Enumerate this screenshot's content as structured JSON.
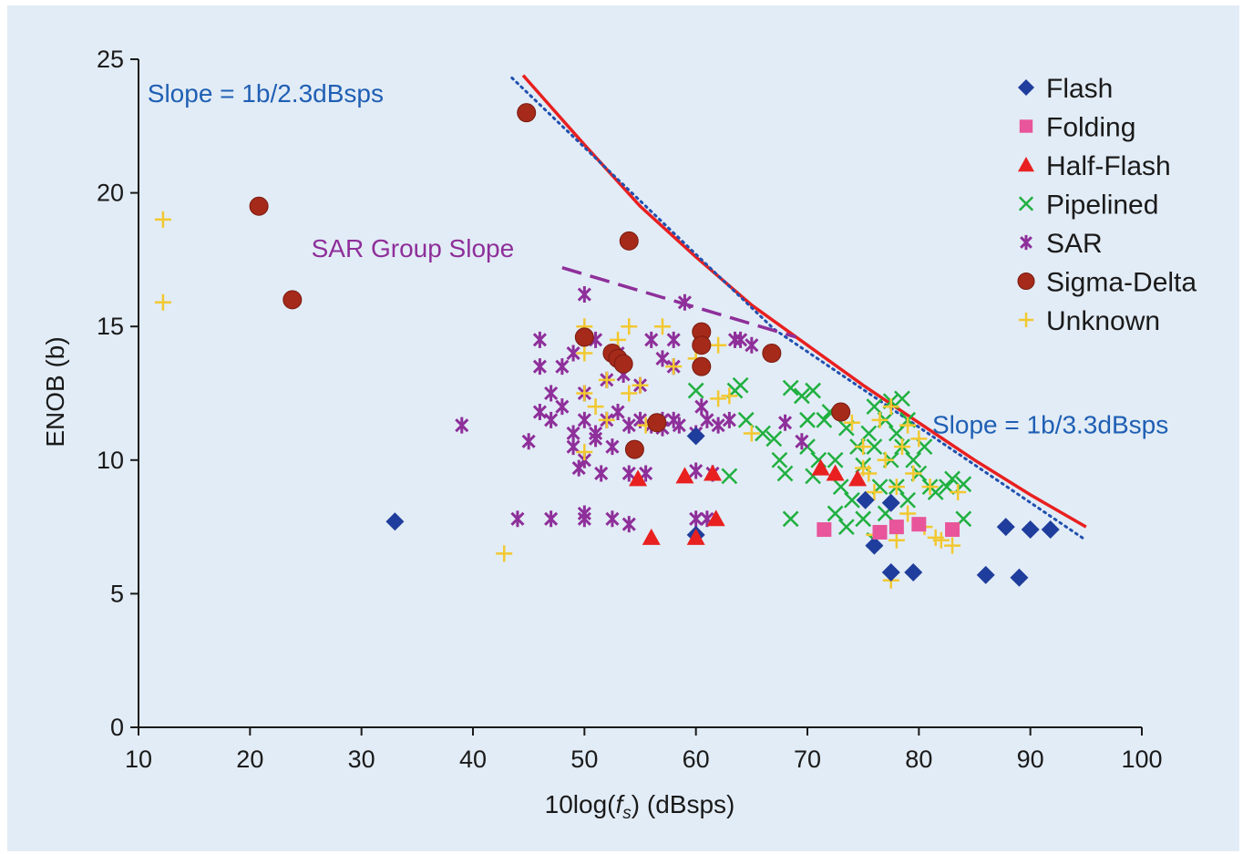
{
  "chart_data": {
    "type": "scatter",
    "xlabel_pre": "10log(",
    "xlabel_var": "f",
    "xlabel_sub": "s",
    "xlabel_post": ") (dBsps)",
    "ylabel": "ENOB (b)",
    "xlim": [
      10,
      100
    ],
    "ylim": [
      0,
      25
    ],
    "xticks": [
      10,
      20,
      30,
      40,
      50,
      60,
      70,
      80,
      90,
      100
    ],
    "yticks": [
      0,
      5,
      10,
      15,
      20,
      25
    ],
    "grid": false,
    "legend_position": "top-right",
    "legend": [
      {
        "label": "Flash",
        "marker": "diamond",
        "color": "#1f3d9c"
      },
      {
        "label": "Folding",
        "marker": "square",
        "color": "#e8559a"
      },
      {
        "label": "Half-Flash",
        "marker": "triangle",
        "color": "#e82020"
      },
      {
        "label": "Pipelined",
        "marker": "x",
        "color": "#20b040"
      },
      {
        "label": "SAR",
        "marker": "asterisk",
        "color": "#8e2f9a"
      },
      {
        "label": "Sigma-Delta",
        "marker": "circle",
        "color": "#a52a1a"
      },
      {
        "label": "Unknown",
        "marker": "plus",
        "color": "#f2c830"
      }
    ],
    "annotations": [
      {
        "text": "Slope = 1b/2.3dBsps",
        "x": 10.8,
        "y": 23.4,
        "color": "#1f5fb4"
      },
      {
        "text": "SAR Group Slope",
        "x": 25.5,
        "y": 17.6,
        "color": "#8e2f9a"
      },
      {
        "text": "Slope = 1b/3.3dBsps",
        "x": 81.2,
        "y": 11.0,
        "color": "#1f5fb4"
      }
    ],
    "lines": [
      {
        "style": "solid",
        "color": "#e82020",
        "points": [
          [
            44.5,
            24.4
          ],
          [
            50,
            21.8
          ],
          [
            55,
            19.5
          ],
          [
            60,
            17.6
          ],
          [
            65,
            15.8
          ],
          [
            70,
            14.3
          ],
          [
            75,
            12.8
          ],
          [
            80,
            11.4
          ],
          [
            85,
            10.0
          ],
          [
            90,
            8.7
          ],
          [
            95,
            7.5
          ]
        ]
      },
      {
        "style": "dotted",
        "color": "#2050b0",
        "points": [
          [
            43.5,
            24.3
          ],
          [
            67,
            14.9
          ],
          [
            95,
            7.0
          ]
        ]
      },
      {
        "style": "dashed",
        "color": "#8e2f9a",
        "points": [
          [
            48,
            17.2
          ],
          [
            69,
            14.6
          ]
        ]
      }
    ],
    "series": [
      {
        "name": "Flash",
        "marker": "diamond",
        "color": "#1f3d9c",
        "points": [
          [
            33,
            7.7
          ],
          [
            60,
            10.9
          ],
          [
            60,
            7.2
          ],
          [
            75.2,
            8.5
          ],
          [
            77.5,
            8.4
          ],
          [
            76,
            6.8
          ],
          [
            77.5,
            5.8
          ],
          [
            79.5,
            5.8
          ],
          [
            86,
            5.7
          ],
          [
            89,
            5.6
          ],
          [
            87.8,
            7.5
          ],
          [
            90,
            7.4
          ],
          [
            91.8,
            7.4
          ]
        ]
      },
      {
        "name": "Folding",
        "marker": "square",
        "color": "#e8559a",
        "points": [
          [
            71.5,
            7.4
          ],
          [
            76.5,
            7.3
          ],
          [
            78,
            7.5
          ],
          [
            80,
            7.6
          ],
          [
            83,
            7.4
          ]
        ]
      },
      {
        "name": "Half-Flash",
        "marker": "triangle",
        "color": "#e82020",
        "points": [
          [
            54.8,
            9.3
          ],
          [
            56,
            7.1
          ],
          [
            59,
            9.4
          ],
          [
            60,
            7.1
          ],
          [
            61.5,
            9.5
          ],
          [
            61.8,
            7.8
          ],
          [
            71.2,
            9.7
          ],
          [
            72.5,
            9.5
          ],
          [
            74.5,
            9.3
          ]
        ]
      },
      {
        "name": "Pipelined",
        "marker": "x",
        "color": "#20b040",
        "points": [
          [
            60,
            12.6
          ],
          [
            63,
            9.4
          ],
          [
            63.5,
            12.6
          ],
          [
            64,
            12.8
          ],
          [
            64.5,
            11.5
          ],
          [
            66,
            11.0
          ],
          [
            67,
            10.8
          ],
          [
            67.5,
            10.0
          ],
          [
            68,
            9.5
          ],
          [
            68.5,
            7.8
          ],
          [
            68.5,
            12.7
          ],
          [
            69.5,
            12.4
          ],
          [
            70,
            11.5
          ],
          [
            70,
            10.5
          ],
          [
            70.5,
            9.4
          ],
          [
            70.5,
            12.6
          ],
          [
            71,
            10.0
          ],
          [
            71.5,
            11.5
          ],
          [
            72,
            11.8
          ],
          [
            72.5,
            10.0
          ],
          [
            72.5,
            8.0
          ],
          [
            73,
            9.0
          ],
          [
            73.5,
            11.2
          ],
          [
            73.5,
            7.5
          ],
          [
            74,
            8.5
          ],
          [
            74.5,
            10.5
          ],
          [
            75,
            9.8
          ],
          [
            75,
            7.8
          ],
          [
            75.5,
            11.0
          ],
          [
            76,
            12.0
          ],
          [
            76,
            10.5
          ],
          [
            76,
            7.0
          ],
          [
            76.5,
            9.0
          ],
          [
            77,
            11.5
          ],
          [
            77,
            8.0
          ],
          [
            77.5,
            12.2
          ],
          [
            77.5,
            10.0
          ],
          [
            78,
            11.0
          ],
          [
            78,
            9.0
          ],
          [
            78.5,
            12.3
          ],
          [
            78.5,
            10.5
          ],
          [
            79,
            11.5
          ],
          [
            79,
            8.5
          ],
          [
            79.5,
            10.0
          ],
          [
            80,
            9.5
          ],
          [
            80.5,
            10.5
          ],
          [
            81,
            9.0
          ],
          [
            81.5,
            8.8
          ],
          [
            82.5,
            9.0
          ],
          [
            83,
            9.3
          ],
          [
            84,
            9.1
          ],
          [
            84,
            7.8
          ]
        ]
      },
      {
        "name": "SAR",
        "marker": "asterisk",
        "color": "#8e2f9a",
        "points": [
          [
            39,
            11.3
          ],
          [
            45,
            10.7
          ],
          [
            44,
            7.8
          ],
          [
            47,
            7.8
          ],
          [
            50,
            8.0
          ],
          [
            50,
            7.8
          ],
          [
            52.5,
            7.8
          ],
          [
            54,
            7.6
          ],
          [
            60,
            7.8
          ],
          [
            61,
            7.8
          ],
          [
            46,
            11.8
          ],
          [
            46,
            14.5
          ],
          [
            46,
            13.5
          ],
          [
            47,
            12.5
          ],
          [
            47,
            11.5
          ],
          [
            48,
            13.5
          ],
          [
            48,
            12.0
          ],
          [
            49,
            11.0
          ],
          [
            49,
            14.0
          ],
          [
            49,
            10.5
          ],
          [
            49.5,
            9.7
          ],
          [
            50,
            16.2
          ],
          [
            50,
            11.5
          ],
          [
            50,
            12.5
          ],
          [
            50,
            10.0
          ],
          [
            51,
            14.5
          ],
          [
            51,
            11.0
          ],
          [
            51,
            10.8
          ],
          [
            51.5,
            9.5
          ],
          [
            52,
            13.0
          ],
          [
            52,
            11.5
          ],
          [
            52.5,
            10.5
          ],
          [
            53,
            14.0
          ],
          [
            53,
            11.8
          ],
          [
            53.5,
            13.2
          ],
          [
            54,
            9.5
          ],
          [
            54,
            11.3
          ],
          [
            55,
            11.5
          ],
          [
            55,
            12.8
          ],
          [
            55.5,
            9.5
          ],
          [
            56,
            11.3
          ],
          [
            56,
            14.5
          ],
          [
            57,
            11.5
          ],
          [
            57,
            13.8
          ],
          [
            58,
            11.5
          ],
          [
            58,
            14.5
          ],
          [
            58.5,
            11.3
          ],
          [
            59,
            15.9
          ],
          [
            60,
            11.0
          ],
          [
            60,
            9.6
          ],
          [
            60.5,
            12.0
          ],
          [
            61,
            11.5
          ],
          [
            61.5,
            9.5
          ],
          [
            62,
            11.3
          ],
          [
            63,
            11.5
          ],
          [
            63.5,
            14.5
          ],
          [
            64,
            14.5
          ],
          [
            65,
            14.3
          ],
          [
            68,
            11.4
          ],
          [
            69.5,
            10.7
          ],
          [
            57,
            11.2
          ],
          [
            58,
            13.5
          ]
        ]
      },
      {
        "name": "Sigma-Delta",
        "marker": "circle",
        "color": "#a52a1a",
        "points": [
          [
            20.8,
            19.5
          ],
          [
            23.8,
            16.0
          ],
          [
            44.8,
            23.0
          ],
          [
            54,
            18.2
          ],
          [
            50,
            14.6
          ],
          [
            52.5,
            14.0
          ],
          [
            53,
            13.8
          ],
          [
            53.5,
            13.6
          ],
          [
            54.5,
            10.4
          ],
          [
            56.5,
            11.4
          ],
          [
            60.5,
            14.8
          ],
          [
            60.5,
            14.3
          ],
          [
            60.5,
            13.5
          ],
          [
            66.8,
            14.0
          ],
          [
            73,
            11.8
          ]
        ]
      },
      {
        "name": "Unknown",
        "marker": "plus",
        "color": "#f2c830",
        "points": [
          [
            12.2,
            19.0
          ],
          [
            12.2,
            15.9
          ],
          [
            42.8,
            6.5
          ],
          [
            50,
            15.0
          ],
          [
            50,
            14.0
          ],
          [
            50,
            12.5
          ],
          [
            50,
            10.3
          ],
          [
            51,
            12.0
          ],
          [
            52,
            13.0
          ],
          [
            52,
            11.5
          ],
          [
            53,
            14.5
          ],
          [
            54,
            15.0
          ],
          [
            54,
            12.5
          ],
          [
            55,
            12.8
          ],
          [
            55.5,
            11.3
          ],
          [
            57,
            15.0
          ],
          [
            58,
            13.5
          ],
          [
            60,
            13.8
          ],
          [
            62,
            12.3
          ],
          [
            63,
            12.4
          ],
          [
            65,
            11.0
          ],
          [
            74,
            11.4
          ],
          [
            75,
            10.5
          ],
          [
            75.5,
            9.5
          ],
          [
            76,
            8.8
          ],
          [
            76,
            7.2
          ],
          [
            76.5,
            11.5
          ],
          [
            77,
            10.0
          ],
          [
            77.5,
            12.0
          ],
          [
            77.5,
            5.5
          ],
          [
            78,
            9.0
          ],
          [
            78,
            7.0
          ],
          [
            78.5,
            10.5
          ],
          [
            79,
            11.3
          ],
          [
            79,
            8.0
          ],
          [
            79.5,
            9.5
          ],
          [
            80,
            10.8
          ],
          [
            80.5,
            7.5
          ],
          [
            81,
            9.0
          ],
          [
            81.5,
            7.1
          ],
          [
            82,
            7.0
          ],
          [
            83,
            6.8
          ],
          [
            83.5,
            8.8
          ],
          [
            75,
            9.7
          ],
          [
            62,
            14.3
          ]
        ]
      }
    ]
  }
}
